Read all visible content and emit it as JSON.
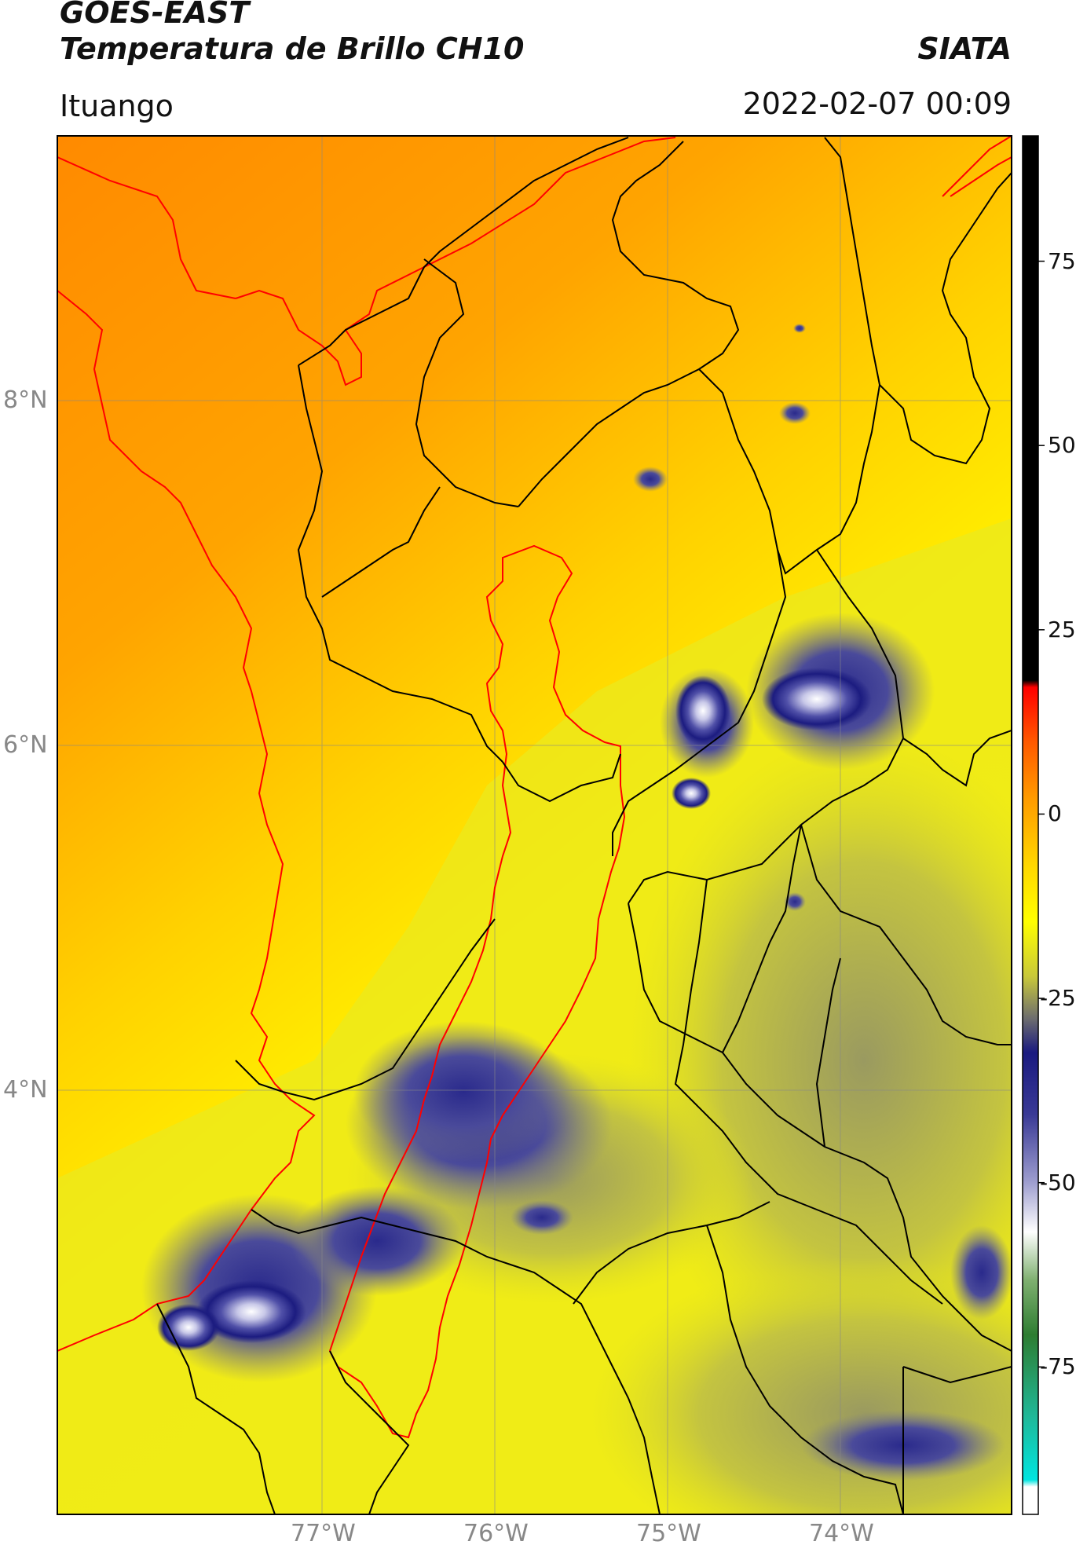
{
  "header": {
    "title_line1": "GOES-EAST",
    "title_line2": "Temperatura de Brillo CH10",
    "organization": "SIATA",
    "location": "Ituango",
    "timestamp": "2022-02-07 00:09"
  },
  "map": {
    "lat_ticks": [
      "8°N",
      "6°N",
      "4°N"
    ],
    "lon_ticks": [
      "77°W",
      "76°W",
      "75°W",
      "74°W"
    ],
    "lon_range": [
      -78.55,
      -73.0
    ],
    "lat_range": [
      1.8,
      9.5
    ],
    "colors": {
      "basin_outline": "#ff0000",
      "borders": "#000000",
      "gridlines": "#888888"
    }
  },
  "colorbar": {
    "ticks": [
      "75",
      "50",
      "25",
      "0",
      "-25",
      "-50",
      "-75"
    ],
    "tick_values": [
      75,
      50,
      25,
      0,
      -25,
      -50,
      -75
    ],
    "range": [
      -95,
      92
    ],
    "units": ""
  }
}
